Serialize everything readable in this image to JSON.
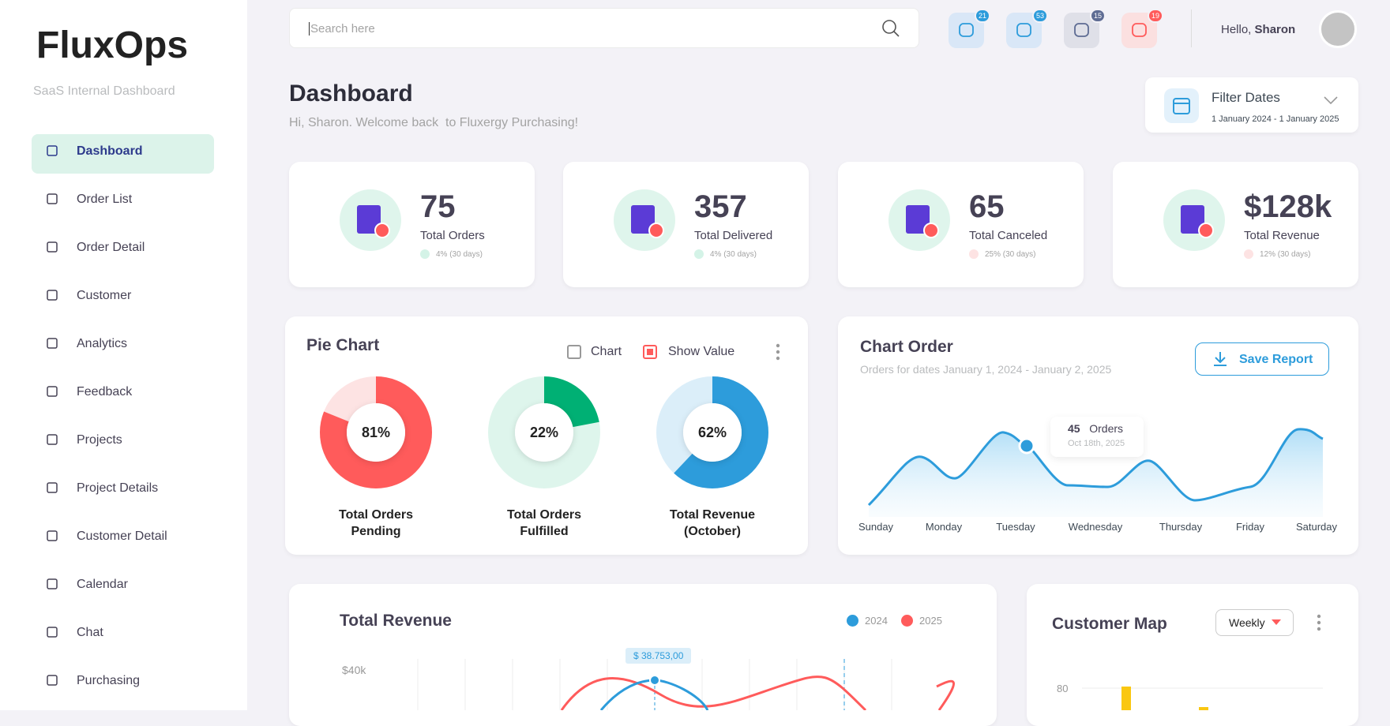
{
  "sidebar": {
    "brand": "FluxOps",
    "tagline": "SaaS Internal Dashboard",
    "nav": [
      "Dashboard",
      "Order List",
      "Order Detail",
      "Customer",
      "Analytics",
      "Feedback",
      "Projects",
      "Project Details",
      "Customer Detail",
      "Calendar",
      "Chat",
      "Purchasing"
    ]
  },
  "topbar": {
    "search_placeholder": "Search here",
    "badges": [
      "21",
      "53",
      "15",
      "19"
    ],
    "greeting": "Hello,",
    "user": "Sharon"
  },
  "header": {
    "title": "Dashboard",
    "subtitle": "Hi, Sharon. Welcome back  to Fluxergy Purchasing!"
  },
  "filter": {
    "label": "Filter Dates",
    "range": "1 January 2024 - 1 January 2025"
  },
  "stats": [
    {
      "value": "75",
      "label": "Total Orders",
      "change": "4% (30 days)",
      "trend": "up"
    },
    {
      "value": "357",
      "label": "Total Delivered",
      "change": "4% (30 days)",
      "trend": "up"
    },
    {
      "value": "65",
      "label": "Total Canceled",
      "change": "25% (30 days)",
      "trend": "down"
    },
    {
      "value": "$128k",
      "label": "Total Revenue",
      "change": "12% (30 days)",
      "trend": "down"
    }
  ],
  "pie_card": {
    "title": "Pie Chart",
    "toggles": [
      "Chart",
      "Show Value"
    ],
    "donuts": [
      {
        "value": 81,
        "value_label": "81%",
        "label": [
          "Total Orders",
          "Pending"
        ],
        "color": "#ff5b5b",
        "track": "#fde3e3"
      },
      {
        "value": 22,
        "value_label": "22%",
        "label": [
          "Total Orders",
          "Fulfilled"
        ],
        "color": "#00b074",
        "track": "#def5ec"
      },
      {
        "value": 62,
        "value_label": "62%",
        "label": [
          "Total Revenue",
          "(October)"
        ],
        "color": "#2d9cdb",
        "track": "#dbeef9"
      }
    ]
  },
  "order_card": {
    "title": "Chart Order",
    "subtitle": "Orders for dates January 1, 2024 - January 2, 2025",
    "button": "Save Report",
    "tooltip": {
      "value": "45",
      "unit": "Orders",
      "date": "Oct 18th, 2025"
    },
    "days": [
      "Sunday",
      "Monday",
      "Tuesday",
      "Wednesday",
      "Thursday",
      "Friday",
      "Saturday"
    ]
  },
  "revenue_card": {
    "title": "Total Revenue",
    "legend": [
      {
        "name": "2024",
        "color": "#2d9cdb"
      },
      {
        "name": "2025",
        "color": "#ff5b5b"
      }
    ],
    "tick": "$40k",
    "tooltip": "$ 38.753,00"
  },
  "map_card": {
    "title": "Customer Map",
    "period": "Weekly",
    "tick": "80"
  }
}
